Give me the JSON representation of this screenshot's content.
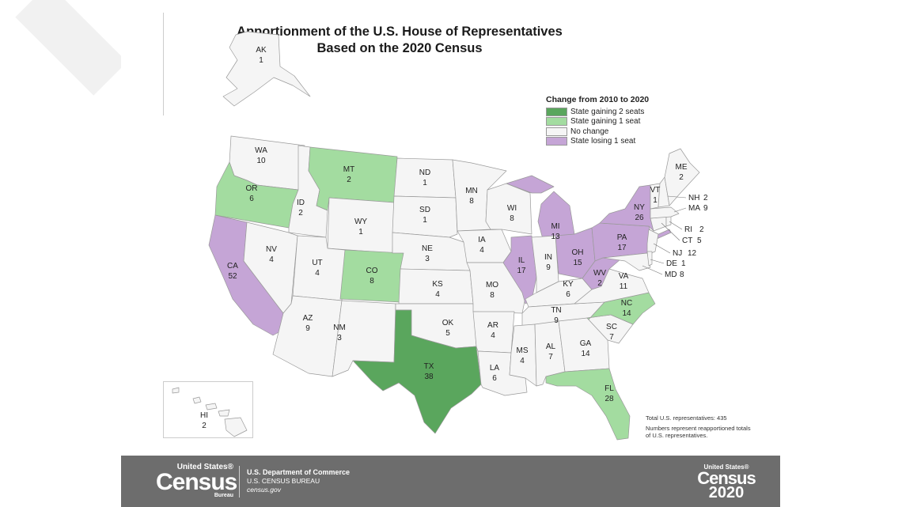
{
  "title_line1": "Apportionment of the U.S. House of Representatives",
  "title_line2": "Based on the 2020 Census",
  "legend": {
    "title": "Change from 2010 to 2020",
    "items": [
      {
        "label": "State gaining 2 seats",
        "color": "#5aa65d"
      },
      {
        "label": "State gaining 1 seat",
        "color": "#a3dca0"
      },
      {
        "label": "No change",
        "color": "#f5f5f5"
      },
      {
        "label": "State losing 1 seat",
        "color": "#c5a5d6"
      }
    ]
  },
  "states": {
    "WA": {
      "abbr": "WA",
      "seats": "10",
      "change": "none"
    },
    "OR": {
      "abbr": "OR",
      "seats": "6",
      "change": "gain1"
    },
    "CA": {
      "abbr": "CA",
      "seats": "52",
      "change": "lose1"
    },
    "ID": {
      "abbr": "ID",
      "seats": "2",
      "change": "none"
    },
    "NV": {
      "abbr": "NV",
      "seats": "4",
      "change": "none"
    },
    "MT": {
      "abbr": "MT",
      "seats": "2",
      "change": "gain1"
    },
    "WY": {
      "abbr": "WY",
      "seats": "1",
      "change": "none"
    },
    "UT": {
      "abbr": "UT",
      "seats": "4",
      "change": "none"
    },
    "AZ": {
      "abbr": "AZ",
      "seats": "9",
      "change": "none"
    },
    "CO": {
      "abbr": "CO",
      "seats": "8",
      "change": "gain1"
    },
    "NM": {
      "abbr": "NM",
      "seats": "3",
      "change": "none"
    },
    "ND": {
      "abbr": "ND",
      "seats": "1",
      "change": "none"
    },
    "SD": {
      "abbr": "SD",
      "seats": "1",
      "change": "none"
    },
    "NE": {
      "abbr": "NE",
      "seats": "3",
      "change": "none"
    },
    "KS": {
      "abbr": "KS",
      "seats": "4",
      "change": "none"
    },
    "OK": {
      "abbr": "OK",
      "seats": "5",
      "change": "none"
    },
    "TX": {
      "abbr": "TX",
      "seats": "38",
      "change": "gain2"
    },
    "MN": {
      "abbr": "MN",
      "seats": "8",
      "change": "none"
    },
    "IA": {
      "abbr": "IA",
      "seats": "4",
      "change": "none"
    },
    "MO": {
      "abbr": "MO",
      "seats": "8",
      "change": "none"
    },
    "AR": {
      "abbr": "AR",
      "seats": "4",
      "change": "none"
    },
    "LA": {
      "abbr": "LA",
      "seats": "6",
      "change": "none"
    },
    "WI": {
      "abbr": "WI",
      "seats": "8",
      "change": "none"
    },
    "IL": {
      "abbr": "IL",
      "seats": "17",
      "change": "lose1"
    },
    "MI": {
      "abbr": "MI",
      "seats": "13",
      "change": "lose1"
    },
    "IN": {
      "abbr": "IN",
      "seats": "9",
      "change": "none"
    },
    "OH": {
      "abbr": "OH",
      "seats": "15",
      "change": "lose1"
    },
    "KY": {
      "abbr": "KY",
      "seats": "6",
      "change": "none"
    },
    "TN": {
      "abbr": "TN",
      "seats": "9",
      "change": "none"
    },
    "MS": {
      "abbr": "MS",
      "seats": "4",
      "change": "none"
    },
    "AL": {
      "abbr": "AL",
      "seats": "7",
      "change": "none"
    },
    "GA": {
      "abbr": "GA",
      "seats": "14",
      "change": "none"
    },
    "FL": {
      "abbr": "FL",
      "seats": "28",
      "change": "gain1"
    },
    "SC": {
      "abbr": "SC",
      "seats": "7",
      "change": "none"
    },
    "NC": {
      "abbr": "NC",
      "seats": "14",
      "change": "gain1"
    },
    "VA": {
      "abbr": "VA",
      "seats": "11",
      "change": "none"
    },
    "WV": {
      "abbr": "WV",
      "seats": "2",
      "change": "lose1"
    },
    "PA": {
      "abbr": "PA",
      "seats": "17",
      "change": "lose1"
    },
    "NY": {
      "abbr": "NY",
      "seats": "26",
      "change": "lose1"
    },
    "VT": {
      "abbr": "VT",
      "seats": "1",
      "change": "none"
    },
    "ME": {
      "abbr": "ME",
      "seats": "2",
      "change": "none"
    },
    "NH": {
      "abbr": "NH",
      "seats": "2",
      "change": "none"
    },
    "MA": {
      "abbr": "MA",
      "seats": "9",
      "change": "none"
    },
    "RI": {
      "abbr": "RI",
      "seats": "2",
      "change": "none"
    },
    "CT": {
      "abbr": "CT",
      "seats": "5",
      "change": "none"
    },
    "NJ": {
      "abbr": "NJ",
      "seats": "12",
      "change": "none"
    },
    "DE": {
      "abbr": "DE",
      "seats": "1",
      "change": "none"
    },
    "MD": {
      "abbr": "MD",
      "seats": "8",
      "change": "none"
    },
    "AK": {
      "abbr": "AK",
      "seats": "1",
      "change": "none"
    },
    "HI": {
      "abbr": "HI",
      "seats": "2",
      "change": "none"
    }
  },
  "notes": {
    "total": "Total U.S. representatives: 435",
    "explain": "Numbers represent reapportioned totals of U.S. representatives."
  },
  "footer": {
    "logo_small": "United States®",
    "logo_big": "Census",
    "logo_bureau": "Bureau",
    "dept1": "U.S. Department of Commerce",
    "dept2": "U.S. CENSUS BUREAU",
    "dept3": "census.gov",
    "right_small": "United States®",
    "right_big": "Census",
    "right_year": "2020"
  }
}
